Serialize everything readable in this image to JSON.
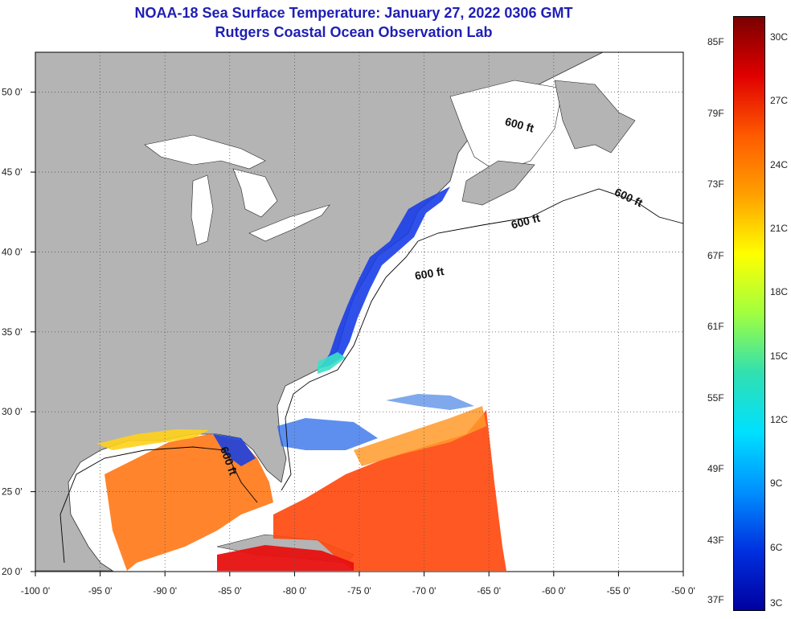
{
  "header": {
    "title": "NOAA-18 Sea Surface Temperature:  January 27, 2022 0306 GMT",
    "subtitle": "Rutgers Coastal Ocean Observation Lab"
  },
  "map": {
    "lon_range": [
      -100,
      -50
    ],
    "lat_range": [
      20,
      52.5
    ],
    "lon_ticks": [
      "-100 0'",
      "-95 0'",
      "-90 0'",
      "-85 0'",
      "-80 0'",
      "-75 0'",
      "-70 0'",
      "-65 0'",
      "-60 0'",
      "-55 0'",
      "-50 0'"
    ],
    "lat_ticks": [
      "20 0'",
      "25 0'",
      "30 0'",
      "35 0'",
      "40 0'",
      "45 0'",
      "50 0'"
    ],
    "contour_labels": [
      "600 ft",
      "600 ft",
      "600 ft",
      "600 ft",
      "600 ft"
    ],
    "colors": {
      "land": "#b4b4b4",
      "grid": "#555555"
    }
  },
  "colorbar": {
    "f_labels": [
      "85F",
      "79F",
      "73F",
      "67F",
      "61F",
      "55F",
      "49F",
      "43F",
      "37F"
    ],
    "c_labels": [
      "30C",
      "27C",
      "24C",
      "21C",
      "18C",
      "15C",
      "12C",
      "9C",
      "6C",
      "3C"
    ],
    "gradient": [
      "#7a0000",
      "#e00000",
      "#ff5a00",
      "#ffa000",
      "#ffff00",
      "#a0ff40",
      "#30e0b0",
      "#00e0ff",
      "#0090ff",
      "#0030e0",
      "#0000a0"
    ]
  }
}
